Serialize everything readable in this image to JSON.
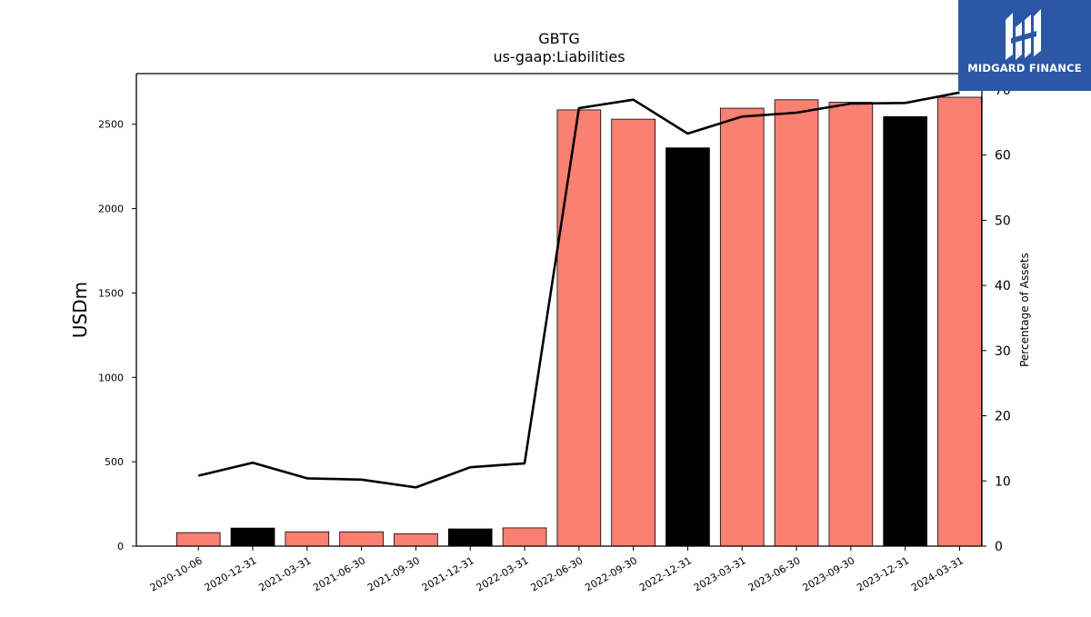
{
  "chart_data": {
    "type": "bar",
    "title": "GBTG",
    "subtitle": "us-gaap:Liabilities",
    "ylabel": "USDm",
    "y2label": "Percentage of Assets",
    "categories": [
      "2020-10-06",
      "2020-12-31",
      "2021-03-31",
      "2021-06-30",
      "2021-09-30",
      "2021-12-31",
      "2022-03-31",
      "2022-06-30",
      "2022-09-30",
      "2022-12-31",
      "2023-03-31",
      "2023-06-30",
      "2023-09-30",
      "2023-12-31",
      "2024-03-31"
    ],
    "bar_values": [
      80,
      107,
      85,
      85,
      73,
      102,
      108,
      2585,
      2530,
      2360,
      2595,
      2645,
      2630,
      2545,
      2660
    ],
    "bar_colors": [
      "#fa8072",
      "#000000",
      "#fa8072",
      "#fa8072",
      "#fa8072",
      "#000000",
      "#fa8072",
      "#fa8072",
      "#fa8072",
      "#000000",
      "#fa8072",
      "#fa8072",
      "#fa8072",
      "#000000",
      "#fa8072"
    ],
    "line_values": [
      10.8,
      12.8,
      10.4,
      10.2,
      9.0,
      12.1,
      12.7,
      67.2,
      68.5,
      63.3,
      65.9,
      66.5,
      67.9,
      68.0,
      69.6
    ],
    "line_color": "#000000",
    "ylim": [
      0,
      2800
    ],
    "y2lim": [
      0,
      72.5
    ],
    "yticks": [
      0,
      500,
      1000,
      1500,
      2000,
      2500
    ],
    "y2ticks": [
      0,
      10,
      20,
      30,
      40,
      50,
      60,
      70
    ],
    "grid": false
  },
  "logo": {
    "text": "MIDGARD FINANCE",
    "background": "#2b57a7"
  }
}
